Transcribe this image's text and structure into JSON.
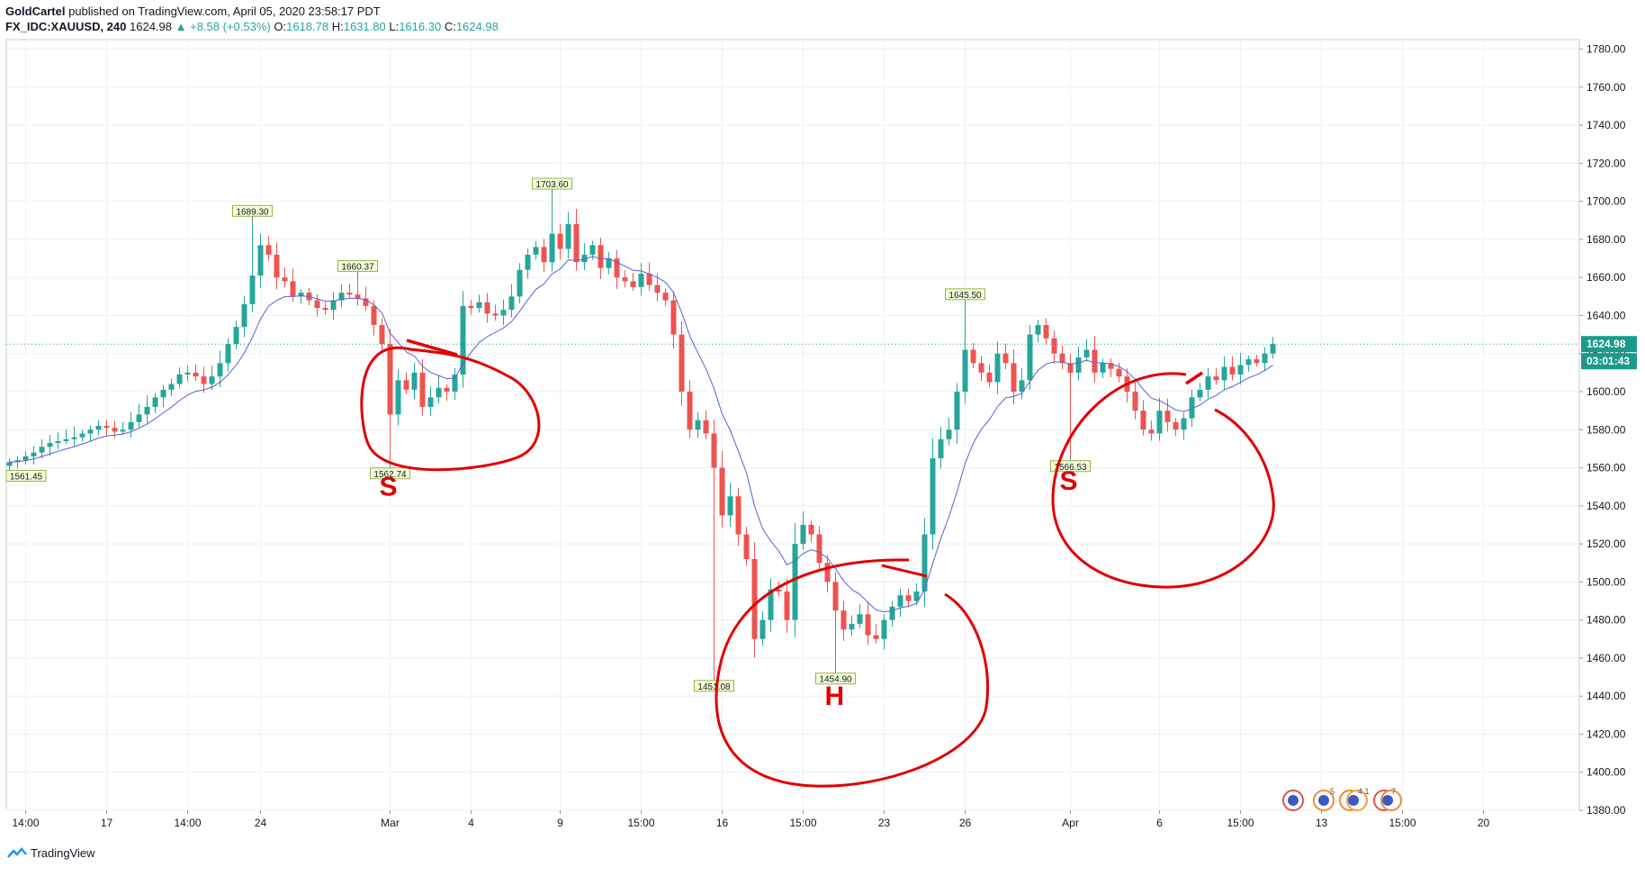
{
  "header": {
    "author": "GoldCartel",
    "published_text": "published on TradingView.com, April 05, 2020 23:58:17 PDT",
    "symbol": "FX_IDC:XAUUSD, 240",
    "last": "1624.98",
    "change": "+8.58 (+0.53%)",
    "o_label": "O:",
    "o_value": "1618.78",
    "h_label": "H:",
    "h_value": "1631.80",
    "l_label": "L:",
    "l_value": "1616.30",
    "c_label": "C:",
    "c_value": "1624.98"
  },
  "footer": {
    "brand": "TradingView"
  },
  "colors": {
    "up": "#26a69a",
    "down": "#ef5350",
    "ma": "#5b5fd6",
    "annotation": "#e00000",
    "price_tag": "#1a9a8a",
    "grid": "#eef0f3"
  },
  "chart_data": {
    "type": "candlestick",
    "ylim": [
      1380,
      1785
    ],
    "y_ticks": [
      1380,
      1400,
      1420,
      1440,
      1460,
      1480,
      1500,
      1520,
      1540,
      1560,
      1580,
      1600,
      1620,
      1640,
      1660,
      1680,
      1700,
      1720,
      1740,
      1760,
      1780
    ],
    "y_tick_labels": [
      "1380.00",
      "1400.00",
      "1420.00",
      "1440.00",
      "1460.00",
      "1480.00",
      "1500.00",
      "1520.00",
      "1540.00",
      "1560.00",
      "1580.00",
      "1600.00",
      "1620.00",
      "1640.00",
      "1660.00",
      "1680.00",
      "1700.00",
      "1720.00",
      "1740.00",
      "1760.00",
      "1780.00"
    ],
    "x_ticks": [
      {
        "label": "14:00",
        "bar": 2
      },
      {
        "label": "17",
        "bar": 12
      },
      {
        "label": "14:00",
        "bar": 22
      },
      {
        "label": "24",
        "bar": 31
      },
      {
        "label": "Mar",
        "bar": 47
      },
      {
        "label": "4",
        "bar": 57
      },
      {
        "label": "9",
        "bar": 68
      },
      {
        "label": "15:00",
        "bar": 78
      },
      {
        "label": "16",
        "bar": 88
      },
      {
        "label": "15:00",
        "bar": 98
      },
      {
        "label": "23",
        "bar": 108
      },
      {
        "label": "26",
        "bar": 118
      },
      {
        "label": "Apr",
        "bar": 131
      },
      {
        "label": "6",
        "bar": 142
      },
      {
        "label": "15:00",
        "bar": 152
      },
      {
        "label": "13",
        "bar": 162
      },
      {
        "label": "15:00",
        "bar": 172
      },
      {
        "label": "20",
        "bar": 182
      }
    ],
    "closes": [
      1563,
      1564,
      1566,
      1568,
      1571,
      1573,
      1574,
      1575,
      1576,
      1578,
      1580,
      1582,
      1581,
      1579,
      1580,
      1584,
      1588,
      1592,
      1597,
      1601,
      1604,
      1609,
      1610,
      1608,
      1604,
      1608,
      1615,
      1625,
      1634,
      1646,
      1661,
      1677,
      1672,
      1660,
      1658,
      1650,
      1652,
      1648,
      1644,
      1643,
      1648,
      1652,
      1651,
      1649,
      1645,
      1635,
      1625,
      1588,
      1606,
      1601,
      1610,
      1592,
      1597,
      1602,
      1600,
      1609,
      1645,
      1644,
      1647,
      1641,
      1640,
      1643,
      1650,
      1664,
      1672,
      1676,
      1668,
      1683,
      1675,
      1688,
      1668,
      1672,
      1677,
      1665,
      1670,
      1660,
      1658,
      1655,
      1662,
      1656,
      1652,
      1648,
      1630,
      1600,
      1580,
      1585,
      1578,
      1560,
      1535,
      1545,
      1525,
      1512,
      1470,
      1480,
      1496,
      1495,
      1480,
      1520,
      1530,
      1525,
      1510,
      1500,
      1485,
      1475,
      1478,
      1483,
      1472,
      1470,
      1480,
      1487,
      1493,
      1490,
      1495,
      1525,
      1565,
      1575,
      1580,
      1600,
      1622,
      1615,
      1610,
      1605,
      1620,
      1615,
      1600,
      1606,
      1630,
      1635,
      1628,
      1620,
      1615,
      1610,
      1618,
      1622,
      1610,
      1615,
      1612,
      1608,
      1600,
      1590,
      1580,
      1578,
      1590,
      1584,
      1580,
      1586,
      1597,
      1601,
      1608,
      1606,
      1613,
      1609,
      1614,
      1617,
      1615,
      1620,
      1625
    ],
    "ma_label": "",
    "price_labels": [
      {
        "text": "1561.45",
        "bar": 0,
        "value": 1561.45,
        "pos": "below"
      },
      {
        "text": "1689.30",
        "bar": 30,
        "value": 1689.3,
        "pos": "above"
      },
      {
        "text": "1660.37",
        "bar": 43,
        "value": 1660.37,
        "pos": "above"
      },
      {
        "text": "1562.74",
        "bar": 47,
        "value": 1562.74,
        "pos": "below"
      },
      {
        "text": "1703.60",
        "bar": 67,
        "value": 1703.6,
        "pos": "above"
      },
      {
        "text": "1451.08",
        "bar": 87,
        "value": 1451.08,
        "pos": "below"
      },
      {
        "text": "1454.90",
        "bar": 102,
        "value": 1454.9,
        "pos": "below"
      },
      {
        "text": "1645.50",
        "bar": 118,
        "value": 1645.5,
        "pos": "above"
      },
      {
        "text": "1566.53",
        "bar": 131,
        "value": 1566.53,
        "pos": "below"
      }
    ],
    "current_price": {
      "value": 1624.98,
      "label": "1624.98",
      "countdown": "03:01:43"
    },
    "annotations": [
      {
        "text": "S",
        "bar": 47,
        "value": 1553
      },
      {
        "text": "H",
        "bar": 102,
        "value": 1443
      },
      {
        "text": "S",
        "bar": 131,
        "value": 1556
      }
    ]
  }
}
